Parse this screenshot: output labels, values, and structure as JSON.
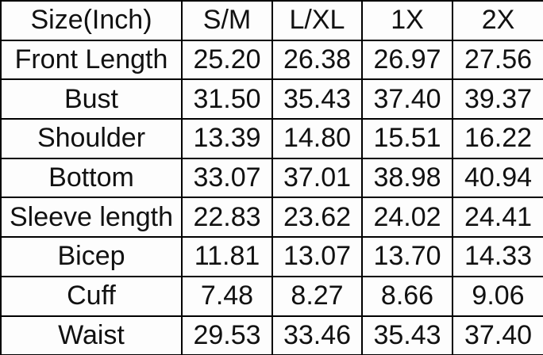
{
  "colors": {
    "border": "#000000",
    "text": "#111111",
    "background": "#fdfdfd"
  },
  "table": {
    "header": [
      "Size(Inch)",
      "S/M",
      "L/XL",
      "1X",
      "2X"
    ],
    "rows": [
      {
        "label": "Front Length",
        "values": [
          "25.20",
          "26.38",
          "26.97",
          "27.56"
        ]
      },
      {
        "label": "Bust",
        "values": [
          "31.50",
          "35.43",
          "37.40",
          "39.37"
        ]
      },
      {
        "label": "Shoulder",
        "values": [
          "13.39",
          "14.80",
          "15.51",
          "16.22"
        ]
      },
      {
        "label": "Bottom",
        "values": [
          "33.07",
          "37.01",
          "38.98",
          "40.94"
        ]
      },
      {
        "label": "Sleeve length",
        "values": [
          "22.83",
          "23.62",
          "24.02",
          "24.41"
        ]
      },
      {
        "label": "Bicep",
        "values": [
          "11.81",
          "13.07",
          "13.70",
          "14.33"
        ]
      },
      {
        "label": "Cuff",
        "values": [
          "7.48",
          "8.27",
          "8.66",
          "9.06"
        ]
      },
      {
        "label": "Waist",
        "values": [
          "29.53",
          "33.46",
          "35.43",
          "37.40"
        ]
      }
    ]
  }
}
